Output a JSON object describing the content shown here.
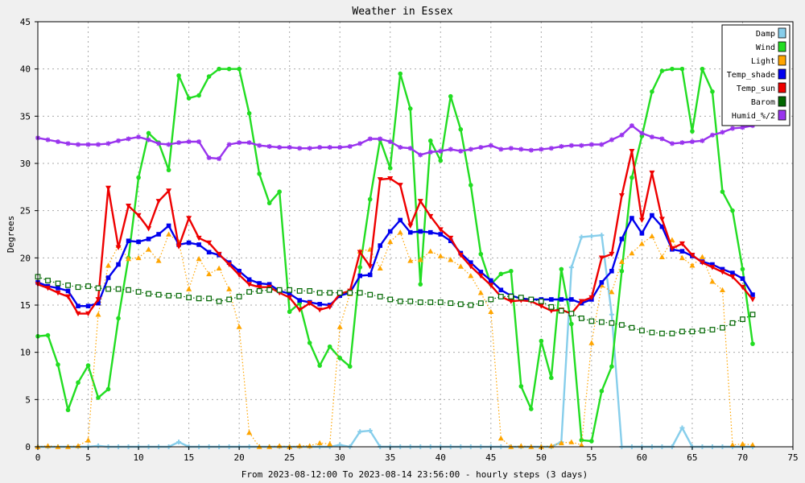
{
  "chart_data": {
    "type": "line",
    "title": "Weather in Essex",
    "xlabel": "From 2023-08-12:00 To 2023-08-14 23:56:00 - hourly steps (3 days)",
    "ylabel": "Degrees",
    "xlim": [
      0,
      75
    ],
    "ylim": [
      0,
      45
    ],
    "x_ticks": [
      0,
      5,
      10,
      15,
      20,
      25,
      30,
      35,
      40,
      45,
      50,
      55,
      60,
      65,
      70,
      75
    ],
    "y_ticks": [
      0,
      5,
      10,
      15,
      20,
      25,
      30,
      35,
      40,
      45
    ],
    "grid": true,
    "legend_position": "top-right",
    "x": [
      0,
      1,
      2,
      3,
      4,
      5,
      6,
      7,
      8,
      9,
      10,
      11,
      12,
      13,
      14,
      15,
      16,
      17,
      18,
      19,
      20,
      21,
      22,
      23,
      24,
      25,
      26,
      27,
      28,
      29,
      30,
      31,
      32,
      33,
      34,
      35,
      36,
      37,
      38,
      39,
      40,
      41,
      42,
      43,
      44,
      45,
      46,
      47,
      48,
      49,
      50,
      51,
      52,
      53,
      54,
      55,
      56,
      57,
      58,
      59,
      60,
      61,
      62,
      63,
      64,
      65,
      66,
      67,
      68,
      69,
      70,
      71
    ],
    "series": [
      {
        "name": "Damp",
        "color": "#87ceeb",
        "style": "solid",
        "marker": "cross",
        "values": [
          0,
          0,
          0,
          0,
          0,
          0,
          0.1,
          0,
          0,
          0,
          0,
          0,
          0,
          0,
          0.5,
          0,
          0,
          0,
          0,
          0,
          0,
          0,
          0,
          0,
          0,
          0,
          0,
          0,
          0,
          0,
          0.2,
          0,
          1.6,
          1.7,
          0,
          0,
          0,
          0,
          0,
          0,
          0,
          0,
          0,
          0,
          0,
          0,
          0,
          0,
          0,
          0,
          0,
          0,
          0.5,
          19,
          22.2,
          22.3,
          22.4,
          14,
          0,
          0,
          0,
          0,
          0,
          0,
          2,
          0,
          0,
          0,
          0,
          0,
          0,
          0
        ]
      },
      {
        "name": "Wind",
        "color": "#22dd22",
        "style": "solid",
        "marker": "circle",
        "values": [
          11.7,
          11.8,
          8.7,
          3.9,
          6.8,
          8.6,
          5.2,
          6.1,
          13.6,
          20,
          28.5,
          33.2,
          32.2,
          29.3,
          39.3,
          36.9,
          37.2,
          39.2,
          40,
          40,
          40,
          35.3,
          28.9,
          25.8,
          27,
          14.3,
          15.2,
          11,
          8.6,
          10.6,
          9.4,
          8.5,
          19,
          26.2,
          32.5,
          29.5,
          39.5,
          35.8,
          17.2,
          32.4,
          30.3,
          37.1,
          33.6,
          27.7,
          20.4,
          17.2,
          18.3,
          18.6,
          6.4,
          4,
          11.2,
          7.3,
          18.8,
          13,
          0.7,
          0.6,
          5.9,
          8.5,
          18.6,
          28.5,
          32.9,
          37.6,
          39.8,
          40,
          40,
          33.4,
          40,
          37.6,
          27,
          25,
          18.8,
          10.9
        ]
      },
      {
        "name": "Light",
        "color": "#ffa500",
        "style": "dotted",
        "marker": "triangle",
        "values": [
          0,
          0.1,
          0,
          0,
          0.1,
          0.7,
          14,
          19.2,
          21.3,
          19.9,
          20,
          20.9,
          19.7,
          22.5,
          21.7,
          16.7,
          19.9,
          18.3,
          18.9,
          16.7,
          12.7,
          1.5,
          0,
          0,
          0.1,
          0,
          0.1,
          0.1,
          0.4,
          0.3,
          12.7,
          16.2,
          20.7,
          20.9,
          18.9,
          21.7,
          22.7,
          19.7,
          19.8,
          20.7,
          20.2,
          19.8,
          19.1,
          18.1,
          16.3,
          14.3,
          0.9,
          0,
          0.1,
          0,
          0,
          0.1,
          0.4,
          0.5,
          0.2,
          11,
          17.1,
          16.4,
          19.6,
          20.5,
          21.5,
          22.3,
          20.1,
          21.9,
          20,
          19.2,
          20.1,
          17.5,
          16.6,
          0.2,
          0.3,
          0.2
        ]
      },
      {
        "name": "Temp_shade",
        "color": "#0000ee",
        "style": "solid",
        "marker": "square",
        "values": [
          17.4,
          17,
          16.8,
          16.5,
          14.9,
          14.9,
          15.2,
          17.9,
          19.3,
          21.8,
          21.7,
          22,
          22.5,
          23.4,
          21.4,
          21.6,
          21.4,
          20.6,
          20.3,
          19.5,
          18.6,
          17.7,
          17.3,
          17.2,
          16.5,
          16.2,
          15.5,
          15.3,
          15.1,
          15,
          16,
          16.3,
          18.1,
          18.2,
          21.3,
          22.8,
          24,
          22.7,
          22.8,
          22.7,
          22.5,
          21.8,
          20.5,
          19.5,
          18.5,
          17.6,
          16.6,
          16,
          15.7,
          15.6,
          15.6,
          15.6,
          15.6,
          15.6,
          15.2,
          15.6,
          17.4,
          18.6,
          22,
          24.2,
          22.6,
          24.5,
          23.3,
          20.9,
          20.7,
          20.2,
          19.6,
          19.3,
          18.8,
          18.4,
          17.8,
          16.1
        ]
      },
      {
        "name": "Temp_sun",
        "color": "#ee0000",
        "style": "solid",
        "marker": "triangle-down",
        "values": [
          17.2,
          16.8,
          16.3,
          15.9,
          14.1,
          14.1,
          15.6,
          27.4,
          21.1,
          25.5,
          24.5,
          23.1,
          26,
          27.1,
          21.2,
          24.2,
          22.1,
          21.6,
          20.4,
          19.3,
          18.2,
          17.2,
          16.9,
          16.9,
          16.3,
          15.8,
          14.5,
          15.2,
          14.5,
          14.8,
          16.2,
          16.5,
          20.6,
          19.1,
          28.3,
          28.4,
          27.7,
          23.4,
          26,
          24.4,
          23,
          22.1,
          20.3,
          19.1,
          18.1,
          17.1,
          15.9,
          15.4,
          15.5,
          15.4,
          14.9,
          14.4,
          14.5,
          14.1,
          15.4,
          15.8,
          20,
          20.4,
          26.6,
          31.3,
          24,
          29,
          24.1,
          21,
          21.5,
          20.3,
          19.5,
          19,
          18.5,
          18,
          16.9,
          15.6
        ]
      },
      {
        "name": "Barom",
        "color": "#006600",
        "style": "dotted",
        "marker": "open-square",
        "values": [
          18,
          17.6,
          17.3,
          17.1,
          16.9,
          17,
          16.8,
          16.7,
          16.7,
          16.6,
          16.4,
          16.2,
          16.1,
          16,
          16,
          15.8,
          15.7,
          15.7,
          15.4,
          15.6,
          15.9,
          16.4,
          16.5,
          16.6,
          16.6,
          16.6,
          16.5,
          16.5,
          16.3,
          16.3,
          16.3,
          16.3,
          16.3,
          16.1,
          15.9,
          15.6,
          15.4,
          15.4,
          15.3,
          15.3,
          15.3,
          15.2,
          15.1,
          15,
          15.2,
          15.6,
          15.9,
          15.9,
          15.8,
          15.6,
          15.4,
          14.8,
          14.4,
          14.1,
          13.6,
          13.3,
          13.2,
          13.1,
          12.9,
          12.6,
          12.3,
          12.1,
          12,
          12,
          12.2,
          12.2,
          12.3,
          12.4,
          12.6,
          13.1,
          13.5,
          14
        ]
      },
      {
        "name": "Humid_%/2",
        "color": "#9933ee",
        "style": "solid",
        "marker": "star",
        "values": [
          32.7,
          32.5,
          32.3,
          32.1,
          32,
          32,
          32,
          32.1,
          32.4,
          32.6,
          32.8,
          32.5,
          32.1,
          32,
          32.2,
          32.3,
          32.3,
          30.6,
          30.5,
          32,
          32.2,
          32.2,
          31.9,
          31.8,
          31.7,
          31.7,
          31.6,
          31.6,
          31.7,
          31.7,
          31.7,
          31.8,
          32.1,
          32.6,
          32.6,
          32.3,
          31.7,
          31.6,
          30.9,
          31.2,
          31.3,
          31.5,
          31.3,
          31.5,
          31.7,
          31.9,
          31.5,
          31.6,
          31.5,
          31.4,
          31.5,
          31.6,
          31.8,
          31.9,
          31.9,
          32,
          32,
          32.5,
          33,
          34,
          33.2,
          32.8,
          32.6,
          32.1,
          32.2,
          32.3,
          32.4,
          33,
          33.3,
          33.7,
          33.8,
          34
        ]
      }
    ]
  }
}
